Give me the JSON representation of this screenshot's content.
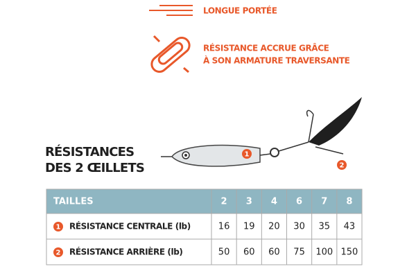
{
  "features": [
    {
      "lines": [
        "LONGUE PORTÉE"
      ]
    },
    {
      "lines": [
        "RÉSISTANCE ACCRUE GRÂCE",
        "À SON ARMATURE TRAVERSANTE"
      ]
    }
  ],
  "heading": {
    "lines": [
      "RÉSISTANCES",
      "DES 2 ŒILLETS"
    ]
  },
  "diagram": {
    "markers": [
      "1",
      "2"
    ]
  },
  "table": {
    "header": "TAILLES",
    "sizes": [
      2,
      3,
      4,
      6,
      7,
      8
    ],
    "rows": [
      {
        "badge": "1",
        "label": "RÉSISTANCE CENTRALE (lb)",
        "values": [
          16,
          19,
          20,
          30,
          35,
          43
        ]
      },
      {
        "badge": "2",
        "label": "RÉSISTANCE ARRIÈRE (lb)",
        "values": [
          50,
          60,
          60,
          75,
          100,
          150
        ]
      }
    ]
  }
}
